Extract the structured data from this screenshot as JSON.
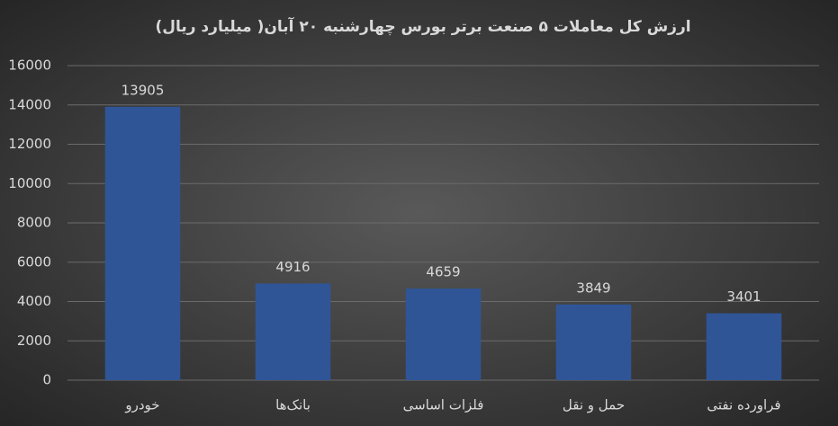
{
  "chart_data": {
    "type": "bar",
    "title": "ارزش کل معاملات ۵ صنعت برتر بورس چهارشنبه ۲۰ آبان( میلیارد ریال)",
    "categories": [
      "خودرو",
      "بانک‌ها",
      "فلزات اساسی",
      "حمل و نقل",
      "فراورده نفتی"
    ],
    "values": [
      13905,
      4916,
      4659,
      3849,
      3401
    ],
    "color": "#2f5597",
    "ylim": [
      0,
      16000
    ],
    "yticks": [
      0,
      2000,
      4000,
      6000,
      8000,
      10000,
      12000,
      14000,
      16000
    ],
    "grid": true
  }
}
